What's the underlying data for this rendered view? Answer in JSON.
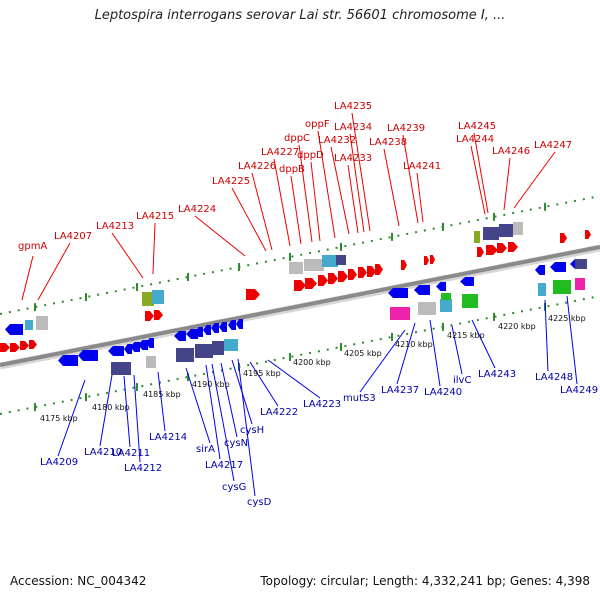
{
  "title": "Leptospira interrogans serovar Lai str. 56601 chromosome I, ...",
  "footer": {
    "accession": "Accession: NC_004342",
    "stats": "Topology: circular; Length: 4,332,241 bp; Genes: 4,398"
  },
  "scale_labels": [
    "4175 kbp",
    "4180 kbp",
    "4185 kbp",
    "4190 kbp",
    "4195 kbp",
    "4200 kbp",
    "4205 kbp",
    "4210 kbp",
    "4215 kbp",
    "4220 kbp",
    "4225 kbp"
  ],
  "top_genes": [
    "gpmA",
    "LA4207",
    "LA4213",
    "LA4215",
    "LA4224",
    "LA4225",
    "LA4226",
    "LA4227",
    "dppB",
    "dppC",
    "dppD",
    "oppF",
    "LA4232",
    "LA4233",
    "LA4234",
    "LA4235",
    "LA4238",
    "LA4239",
    "LA4241",
    "LA4244",
    "LA4245",
    "LA4246",
    "LA4247"
  ],
  "bottom_genes": [
    "LA4209",
    "LA4210",
    "LA4211",
    "LA4212",
    "LA4214",
    "sirA",
    "LA4217",
    "cysG",
    "cysN",
    "cysH",
    "cysD",
    "LA4222",
    "LA4223",
    "mutS3",
    "LA4237",
    "LA4240",
    "ilvC",
    "LA4243",
    "LA4248",
    "LA4249"
  ],
  "colors": {
    "forward": "#ee0000",
    "reverse": "#0000ee",
    "backbone": "#888888",
    "tick": "#2e8b2e",
    "other": [
      "#9999bb",
      "#444488",
      "#44aacc",
      "#22bb22",
      "#ee22aa",
      "#88aa22",
      "#bbbbbb"
    ]
  }
}
